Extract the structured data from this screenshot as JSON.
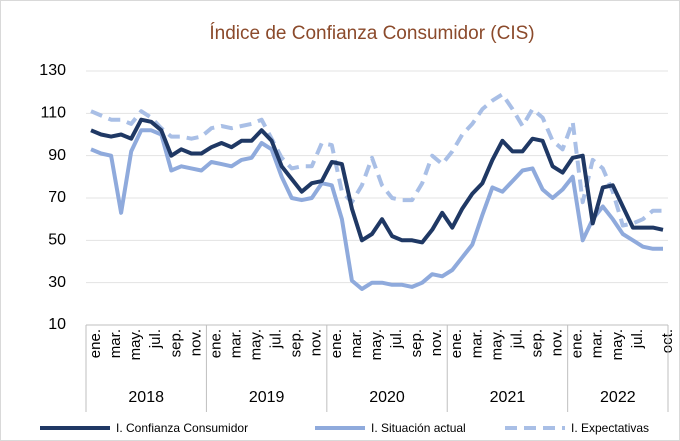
{
  "chart_data": {
    "type": "line",
    "title": "Índice de Confianza Consumidor (CIS)",
    "categories": [
      "ene.",
      null,
      "mar.",
      null,
      "may.",
      null,
      "jul.",
      null,
      "sep.",
      null,
      "nov.",
      null,
      "ene.",
      null,
      "mar.",
      null,
      "may.",
      null,
      "jul.",
      null,
      "sep.",
      null,
      "nov.",
      null,
      "ene.",
      null,
      "mar.",
      null,
      "may.",
      null,
      "jul.",
      null,
      "sep.",
      null,
      "nov.",
      null,
      "ene.",
      null,
      "mar.",
      null,
      "may.",
      null,
      "jul.",
      null,
      "sep.",
      null,
      "nov.",
      null,
      "ene.",
      null,
      "mar.",
      null,
      "may.",
      null,
      "jul.",
      null,
      null,
      "oct."
    ],
    "year_labels": [
      "2018",
      "2019",
      "2020",
      "2021",
      "2022"
    ],
    "series": [
      {
        "name": "I. Confianza Consumidor",
        "color": "#1f3864",
        "dash": false,
        "values": [
          102,
          100,
          99,
          100,
          98,
          107,
          106,
          102,
          90,
          93,
          91,
          91,
          94,
          96,
          94,
          97,
          97,
          102,
          97,
          85,
          79,
          73,
          77,
          78,
          87,
          86,
          65,
          50,
          53,
          60,
          52,
          50,
          50,
          49,
          55,
          63,
          56,
          65,
          72,
          77,
          88,
          97,
          92,
          92,
          98,
          97,
          85,
          82,
          89,
          90,
          58,
          75,
          76,
          66,
          56,
          56,
          56,
          55
        ]
      },
      {
        "name": "I. Situación actual",
        "color": "#8faadc",
        "dash": false,
        "values": [
          93,
          91,
          90,
          63,
          92,
          102,
          102,
          100,
          83,
          85,
          84,
          83,
          87,
          86,
          85,
          88,
          89,
          96,
          93,
          80,
          70,
          69,
          70,
          77,
          76,
          60,
          31,
          27,
          30,
          30,
          29,
          29,
          28,
          30,
          34,
          33,
          36,
          42,
          48,
          62,
          75,
          73,
          78,
          83,
          84,
          74,
          70,
          74,
          80,
          50,
          60,
          66,
          60,
          53,
          50,
          47,
          46,
          46
        ]
      },
      {
        "name": "I. Expectativas",
        "color": "#a9bfe6",
        "dash": true,
        "values": [
          111,
          109,
          107,
          107,
          105,
          111,
          108,
          103,
          99,
          99,
          98,
          99,
          103,
          104,
          103,
          104,
          105,
          107,
          98,
          89,
          84,
          85,
          85,
          96,
          95,
          73,
          68,
          76,
          89,
          76,
          70,
          69,
          69,
          77,
          90,
          86,
          92,
          100,
          105,
          112,
          116,
          119,
          112,
          104,
          112,
          108,
          97,
          93,
          106,
          68,
          88,
          84,
          73,
          57,
          58,
          60,
          64,
          64
        ]
      }
    ],
    "ylim": [
      10,
      130
    ],
    "yticks": [
      10,
      30,
      50,
      70,
      90,
      110,
      130
    ],
    "grid": true
  }
}
